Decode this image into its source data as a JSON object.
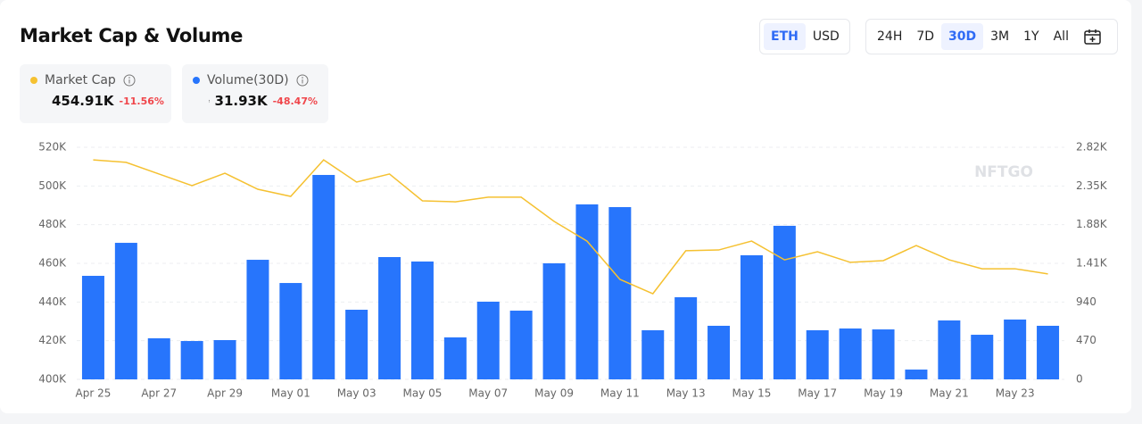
{
  "header": {
    "title": "Market Cap & Volume"
  },
  "currency_toggle": {
    "options": [
      "ETH",
      "USD"
    ],
    "active": 0
  },
  "range_toggle": {
    "options": [
      "24H",
      "7D",
      "30D",
      "3M",
      "1Y",
      "All"
    ],
    "active": 2
  },
  "stats": [
    {
      "value": "454.91K",
      "change": "-11.56%"
    },
    {
      "value": "31.93K",
      "change": "-48.47%"
    }
  ],
  "watermark": "NFTGO",
  "chart_data": {
    "type": "combo",
    "categories": [
      "Apr 25",
      null,
      "Apr 27",
      null,
      "Apr 29",
      null,
      "May 01",
      null,
      "May 03",
      null,
      "May 05",
      null,
      "May 07",
      null,
      "May 09",
      null,
      "May 11",
      null,
      "May 13",
      null,
      "May 15",
      null,
      "May 17",
      null,
      "May 19",
      null,
      "May 21",
      null,
      "May 23",
      null
    ],
    "series": [
      {
        "name": "Market Cap",
        "type": "line",
        "axis": "y",
        "color": "#f5c131",
        "values": [
          513500,
          512200,
          506200,
          500200,
          506600,
          498300,
          494600,
          513500,
          502000,
          506200,
          492300,
          491800,
          494200,
          494200,
          481700,
          471500,
          451700,
          444300,
          466500,
          466900,
          471500,
          461800,
          466000,
          460500,
          461400,
          469200,
          461800,
          457200,
          457200,
          454500
        ]
      },
      {
        "name": "Volume(30D)",
        "type": "bar",
        "axis": "y2",
        "color": "#2775fc",
        "values": [
          1258,
          1659,
          499,
          466,
          477,
          1453,
          1171,
          2484,
          846,
          1486,
          1432,
          510,
          944,
          835,
          1410,
          2126,
          2093,
          597,
          998,
          651,
          1508,
          1866,
          597,
          618,
          607,
          119,
          716,
          542,
          727,
          651
        ]
      }
    ],
    "ylim": [
      400000,
      520000
    ],
    "yticks": [
      {
        "value": 400000,
        "label": "400K"
      },
      {
        "value": 420000,
        "label": "420K"
      },
      {
        "value": 440000,
        "label": "440K"
      },
      {
        "value": 460000,
        "label": "460K"
      },
      {
        "value": 480000,
        "label": "480K"
      },
      {
        "value": 500000,
        "label": "500K"
      },
      {
        "value": 520000,
        "label": "520K"
      }
    ],
    "y2lim": [
      0,
      2820
    ],
    "y2ticks": [
      0,
      470,
      940,
      {
        "value": 1410,
        "label": "1.41K"
      },
      {
        "value": 1880,
        "label": "1.88K"
      },
      {
        "value": 2350,
        "label": "2.35K"
      },
      {
        "value": 2820,
        "label": "2.82K"
      }
    ],
    "grid": true
  }
}
